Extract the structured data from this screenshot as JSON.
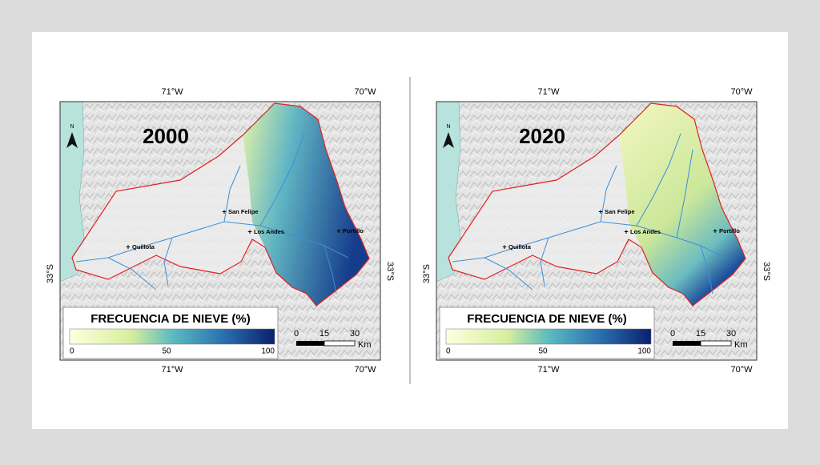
{
  "maps": [
    {
      "year": "2000",
      "top_labels": [
        "71°W",
        "70°W"
      ],
      "bottom_labels": [
        "71°W",
        "70°W"
      ],
      "side_labels": [
        "33°S",
        "33°S"
      ],
      "north": "N",
      "places": [
        "San Felipe",
        "Los Andes",
        "Portillo",
        "Quillota"
      ],
      "legend": {
        "title": "FRECUENCIA DE NIEVE (%)",
        "ticks": [
          "0",
          "50",
          "100"
        ]
      },
      "scale": {
        "ticks": [
          "0",
          "15",
          "30"
        ],
        "unit": "Km"
      }
    },
    {
      "year": "2020",
      "top_labels": [
        "71°W",
        "70°W"
      ],
      "bottom_labels": [
        "71°W",
        "70°W"
      ],
      "side_labels": [
        "33°S",
        "33°S"
      ],
      "north": "N",
      "places": [
        "San Felipe",
        "Los Andes",
        "Portillo",
        "Quillota"
      ],
      "legend": {
        "title": "FRECUENCIA DE NIEVE (%)",
        "ticks": [
          "0",
          "50",
          "100"
        ]
      },
      "scale": {
        "ticks": [
          "0",
          "15",
          "30"
        ],
        "unit": "Km"
      }
    }
  ]
}
